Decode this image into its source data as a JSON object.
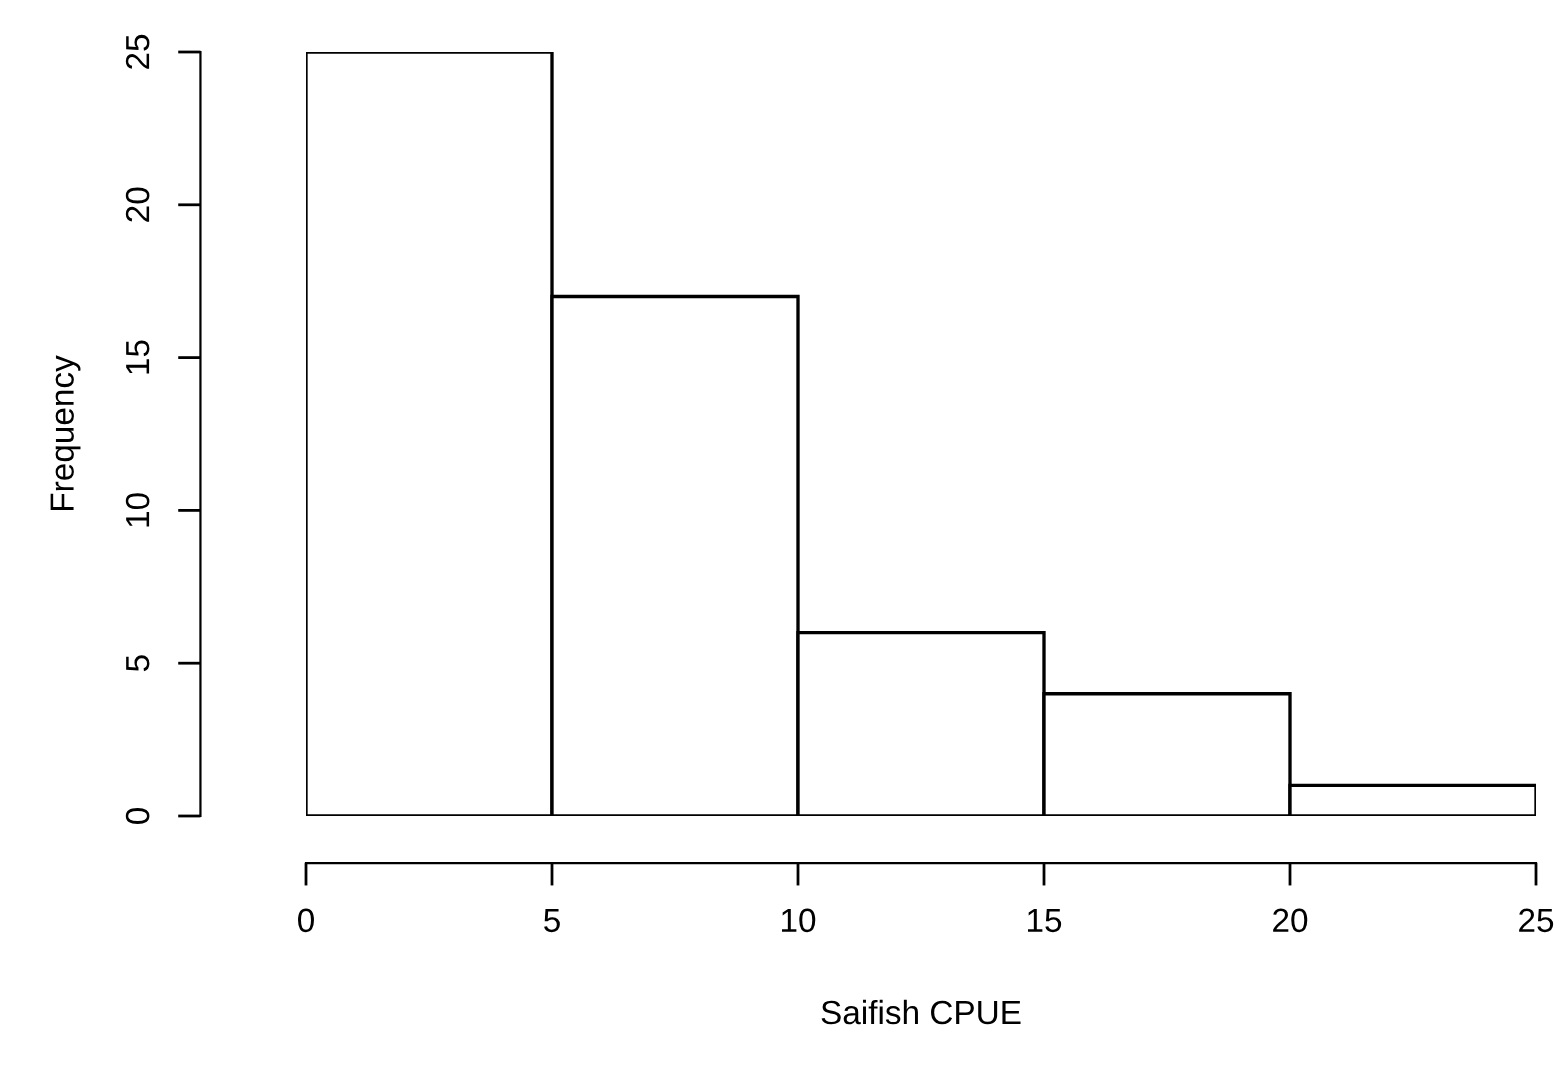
{
  "chart_data": {
    "type": "histogram",
    "xlabel": "Saifish CPUE",
    "ylabel": "Frequency",
    "bins": [
      0,
      5,
      10,
      15,
      20,
      25
    ],
    "values": [
      25,
      17,
      6,
      4,
      1
    ],
    "color": "#ffffff",
    "xlim": [
      0,
      25
    ],
    "ylim": [
      0,
      25
    ],
    "xticks": [
      0,
      5,
      10,
      15,
      20,
      25
    ],
    "yticks": [
      0,
      5,
      10,
      15,
      20,
      25
    ]
  }
}
